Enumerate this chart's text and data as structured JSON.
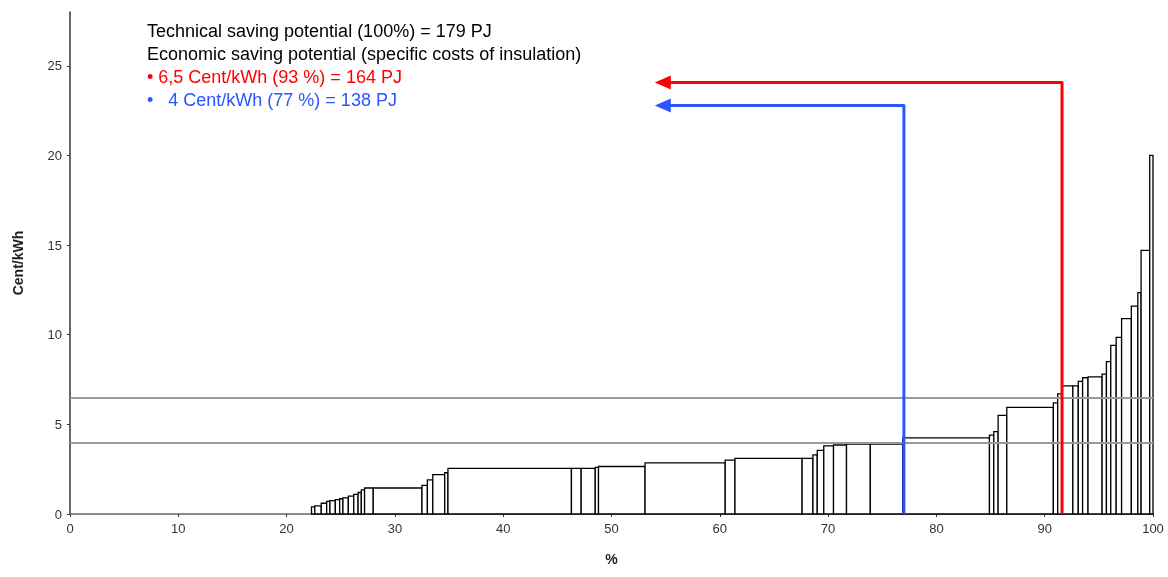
{
  "chart_data": {
    "type": "histogram",
    "xlabel": "%",
    "ylabel": "Cent/kWh",
    "annotations": [
      "Technical saving potential (100%) = 179 PJ",
      "Economic saving potential (specific costs of insulation)",
      "• 6,5 Cent/kWh (93 %) = 164 PJ",
      "•   4 Cent/kWh (77 %) = 138 PJ"
    ],
    "bins": [
      22.3,
      22.6,
      23.2,
      23.7,
      24.0,
      24.5,
      24.9,
      25.2,
      25.7,
      26.2,
      26.6,
      26.9,
      27.2,
      28.0,
      32.5,
      33.0,
      33.5,
      34.6,
      34.9,
      46.3,
      47.2,
      48.5,
      48.8,
      53.1,
      60.5,
      61.4,
      67.6,
      68.6,
      69.0,
      69.6,
      70.5,
      71.7,
      73.9,
      76.9,
      84.9,
      85.3,
      85.7,
      86.5,
      90.8,
      91.2,
      91.6,
      92.6,
      93.1,
      93.5,
      94.0,
      95.3,
      95.7,
      96.1,
      96.6,
      97.1,
      98.0,
      98.6,
      98.9,
      99.7,
      100
    ],
    "values": [
      0.4,
      0.45,
      0.6,
      0.7,
      0.75,
      0.8,
      0.85,
      0.9,
      1.0,
      1.1,
      1.2,
      1.35,
      1.45,
      1.45,
      1.6,
      1.9,
      2.2,
      2.3,
      2.55,
      2.55,
      2.55,
      2.6,
      2.65,
      2.85,
      3.0,
      3.1,
      3.1,
      3.3,
      3.55,
      3.8,
      3.85,
      3.9,
      3.9,
      4.25,
      4.4,
      4.6,
      5.5,
      5.95,
      6.2,
      6.7,
      7.15,
      7.15,
      7.4,
      7.6,
      7.65,
      7.8,
      8.5,
      9.4,
      9.85,
      10.9,
      11.6,
      12.35,
      14.7,
      20
    ],
    "color": "#000000",
    "xlim": [
      0,
      100
    ],
    "xticks": [
      0,
      10,
      20,
      30,
      40,
      50,
      60,
      70,
      80,
      90,
      100
    ],
    "ylim": [
      0,
      28
    ],
    "yticks": [
      0,
      5,
      10,
      15,
      20,
      25
    ],
    "ref_lines": [
      {
        "axis": "y",
        "value": 6.5,
        "color": "#999999"
      },
      {
        "axis": "y",
        "value": 4,
        "color": "#999999"
      },
      {
        "axis": "x",
        "value": 91.6,
        "color": "#ff0000"
      },
      {
        "axis": "x",
        "value": 77,
        "color": "#2a55ff"
      }
    ],
    "grid": false
  }
}
